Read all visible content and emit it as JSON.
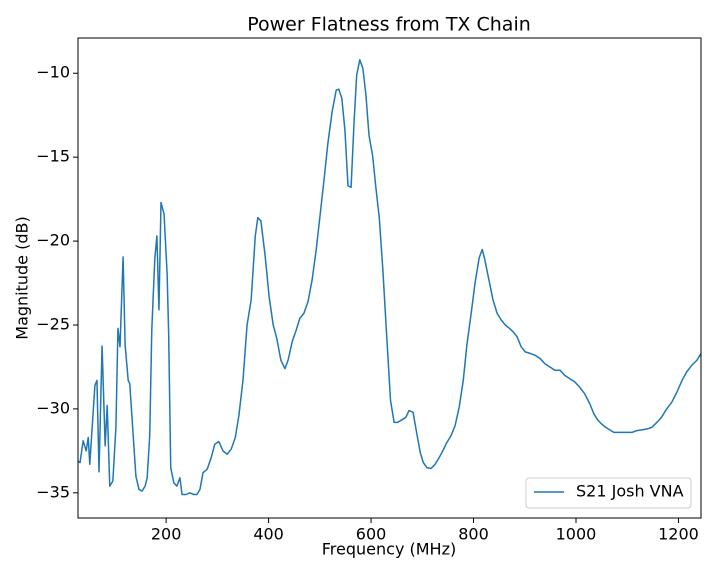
{
  "chart_data": {
    "type": "line",
    "title": "Power Flatness from TX Chain",
    "x_label": "Frequency (MHz)",
    "y_label": "Magnitude (dB)",
    "x": [
      28,
      32,
      38,
      44,
      48,
      51,
      61,
      65,
      69,
      75,
      81,
      85,
      90,
      96,
      102,
      106,
      110,
      116,
      120,
      126,
      129,
      135,
      141,
      147,
      153,
      159,
      163,
      168,
      172,
      178,
      182,
      186,
      190,
      196,
      202,
      205,
      209,
      215,
      221,
      227,
      231,
      239,
      246,
      254,
      260,
      266,
      272,
      280,
      288,
      295,
      303,
      311,
      319,
      327,
      335,
      342,
      350,
      358,
      366,
      374,
      379,
      385,
      393,
      401,
      409,
      416,
      424,
      432,
      438,
      446,
      454,
      461,
      469,
      477,
      485,
      493,
      500,
      508,
      516,
      524,
      532,
      537,
      543,
      549,
      555,
      561,
      567,
      572,
      578,
      584,
      590,
      596,
      603,
      609,
      616,
      623,
      631,
      638,
      645,
      652,
      660,
      668,
      674,
      682,
      688,
      696,
      702,
      709,
      717,
      725,
      733,
      740,
      748,
      756,
      764,
      772,
      780,
      787,
      795,
      803,
      811,
      817,
      822,
      830,
      838,
      846,
      854,
      862,
      870,
      877,
      885,
      893,
      901,
      911,
      920,
      930,
      939,
      949,
      959,
      969,
      978,
      988,
      998,
      1007,
      1017,
      1027,
      1035,
      1042,
      1050,
      1058,
      1066,
      1074,
      1081,
      1089,
      1099,
      1109,
      1118,
      1128,
      1138,
      1148,
      1158,
      1167,
      1177,
      1187,
      1197,
      1207,
      1216,
      1226,
      1236,
      1244
    ],
    "series": [
      {
        "name": "S21 Josh VNA",
        "color": "#1f77b4",
        "values": [
          -33.1,
          -33.2,
          -31.9,
          -32.5,
          -31.7,
          -33.3,
          -28.6,
          -28.3,
          -33.75,
          -26.25,
          -32.2,
          -29.8,
          -34.6,
          -34.3,
          -31.1,
          -25.2,
          -26.3,
          -20.95,
          -26.2,
          -28.3,
          -28.5,
          -31.25,
          -34,
          -34.8,
          -34.9,
          -34.6,
          -34.1,
          -31.6,
          -25.3,
          -21,
          -19.7,
          -24.1,
          -17.7,
          -18.4,
          -22,
          -25.6,
          -33.5,
          -34.4,
          -34.6,
          -34.1,
          -35.1,
          -35.1,
          -35,
          -35.1,
          -35.1,
          -34.8,
          -33.8,
          -33.6,
          -32.9,
          -32.1,
          -31.95,
          -32.5,
          -32.7,
          -32.4,
          -31.7,
          -30.4,
          -28.3,
          -25,
          -23.5,
          -19.7,
          -18.6,
          -18.8,
          -20.8,
          -23.3,
          -25,
          -25.8,
          -27.1,
          -27.6,
          -27.1,
          -26,
          -25.3,
          -24.6,
          -24.3,
          -23.6,
          -22.3,
          -20.5,
          -18.6,
          -16.4,
          -14.1,
          -12.3,
          -11,
          -10.95,
          -11.5,
          -13.4,
          -16.7,
          -16.8,
          -12.8,
          -10.1,
          -9.2,
          -9.7,
          -11.3,
          -13.7,
          -14.9,
          -16.7,
          -18.6,
          -21.7,
          -25.9,
          -29.5,
          -30.8,
          -30.8,
          -30.65,
          -30.5,
          -30.1,
          -30.2,
          -31.25,
          -32.6,
          -33.2,
          -33.5,
          -33.55,
          -33.3,
          -32.9,
          -32.5,
          -32,
          -31.6,
          -31,
          -29.9,
          -28.3,
          -26.2,
          -24.4,
          -22.5,
          -21,
          -20.5,
          -21.1,
          -22.3,
          -23.5,
          -24.3,
          -24.7,
          -25,
          -25.2,
          -25.4,
          -25.7,
          -26.3,
          -26.6,
          -26.7,
          -26.8,
          -27,
          -27.3,
          -27.5,
          -27.7,
          -27.7,
          -28,
          -28.2,
          -28.4,
          -28.7,
          -29.1,
          -29.7,
          -30.3,
          -30.65,
          -30.9,
          -31.1,
          -31.25,
          -31.4,
          -31.4,
          -31.4,
          -31.4,
          -31.4,
          -31.3,
          -31.25,
          -31.2,
          -31.1,
          -30.8,
          -30.5,
          -30,
          -29.6,
          -29,
          -28.3,
          -27.8,
          -27.4,
          -27.1,
          -26.7
        ]
      }
    ],
    "xlim": [
      28,
      1244
    ],
    "ylim": [
      -36.5,
      -7.9
    ],
    "xticks": [
      200,
      400,
      600,
      800,
      1000,
      1200
    ],
    "yticks": [
      {
        "value": -35,
        "label": "−35"
      },
      {
        "value": -30,
        "label": "−30"
      },
      {
        "value": -25,
        "label": "−25"
      },
      {
        "value": -20,
        "label": "−20"
      },
      {
        "value": -15,
        "label": "−15"
      },
      {
        "value": -10,
        "label": "−10"
      }
    ],
    "grid": false,
    "legend": "lower right"
  }
}
